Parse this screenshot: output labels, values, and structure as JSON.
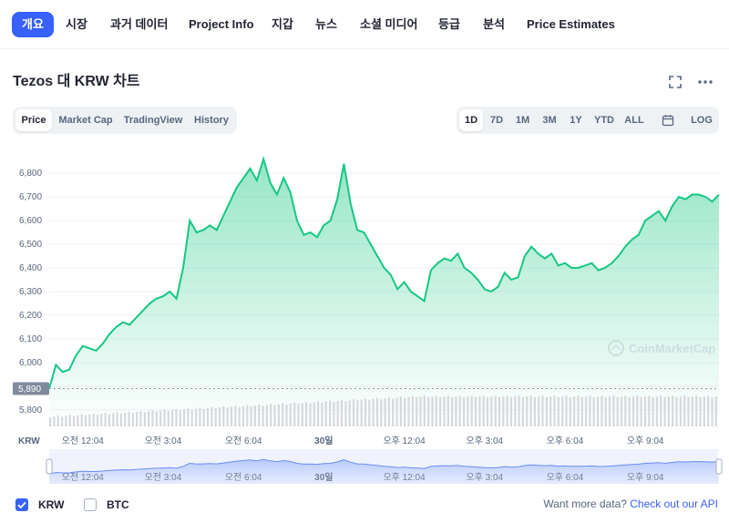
{
  "nav": {
    "items": [
      "개요",
      "시장",
      "과거 데이터",
      "Project Info",
      "지갑",
      "뉴스",
      "소셜 미디어",
      "등급",
      "분석",
      "Price Estimates"
    ],
    "active_index": 0
  },
  "title": "Tezos 대 KRW 차트",
  "icons": {
    "fullscreen": "fullscreen-icon",
    "more": "more-dots-icon",
    "calendar": "calendar-icon"
  },
  "type_tabs": [
    "Price",
    "Market Cap",
    "TradingView",
    "History"
  ],
  "range_tabs": [
    "1D",
    "7D",
    "1M",
    "3M",
    "1Y",
    "YTD",
    "ALL"
  ],
  "log_label": "LOG",
  "watermark": "CoinMarketCap",
  "colors": {
    "accent": "#3861fb",
    "line": "#16c784",
    "text": "#222531",
    "muted": "#58667e"
  },
  "chart_data": {
    "type": "area",
    "y_unit": "KRW",
    "ylim": [
      5780,
      6870
    ],
    "yticks": [
      5800,
      5900,
      6000,
      6100,
      6200,
      6300,
      6400,
      6500,
      6600,
      6700,
      6800
    ],
    "ytick_labels": [
      "5,800",
      "",
      "6,000",
      "6,100",
      "6,200",
      "6,300",
      "6,400",
      "6,500",
      "6,600",
      "6,700",
      "6,800"
    ],
    "current_label": "5,890",
    "current_value": 5890,
    "x_axis_label": "KRW",
    "x_ticks": [
      {
        "pos": 0.05,
        "label": "오전 12:04",
        "bold": false
      },
      {
        "pos": 0.17,
        "label": "오전 3:04",
        "bold": false
      },
      {
        "pos": 0.29,
        "label": "오전 6:04",
        "bold": false
      },
      {
        "pos": 0.41,
        "label": "30일",
        "bold": true
      },
      {
        "pos": 0.53,
        "label": "오후 12:04",
        "bold": false
      },
      {
        "pos": 0.65,
        "label": "오후 3:04",
        "bold": false
      },
      {
        "pos": 0.77,
        "label": "오후 6:04",
        "bold": false
      },
      {
        "pos": 0.89,
        "label": "오후 9:04",
        "bold": false
      }
    ],
    "series": [
      {
        "name": "KRW",
        "x": [
          0,
          0.01,
          0.02,
          0.03,
          0.04,
          0.05,
          0.06,
          0.07,
          0.08,
          0.09,
          0.1,
          0.11,
          0.12,
          0.13,
          0.14,
          0.15,
          0.16,
          0.17,
          0.18,
          0.19,
          0.2,
          0.21,
          0.22,
          0.23,
          0.24,
          0.25,
          0.26,
          0.27,
          0.28,
          0.29,
          0.3,
          0.31,
          0.32,
          0.33,
          0.34,
          0.35,
          0.36,
          0.37,
          0.38,
          0.39,
          0.4,
          0.41,
          0.42,
          0.43,
          0.44,
          0.45,
          0.46,
          0.47,
          0.48,
          0.49,
          0.5,
          0.51,
          0.52,
          0.53,
          0.54,
          0.55,
          0.56,
          0.57,
          0.58,
          0.59,
          0.6,
          0.61,
          0.62,
          0.63,
          0.64,
          0.65,
          0.66,
          0.67,
          0.68,
          0.69,
          0.7,
          0.71,
          0.72,
          0.73,
          0.74,
          0.75,
          0.76,
          0.77,
          0.78,
          0.79,
          0.8,
          0.81,
          0.82,
          0.83,
          0.84,
          0.85,
          0.86,
          0.87,
          0.88,
          0.89,
          0.9,
          0.91,
          0.92,
          0.93,
          0.94,
          0.95,
          0.96,
          0.97,
          0.98,
          0.99,
          1.0
        ],
        "values": [
          5890,
          5990,
          5960,
          5970,
          6030,
          6070,
          6060,
          6050,
          6080,
          6120,
          6150,
          6170,
          6160,
          6190,
          6220,
          6250,
          6270,
          6280,
          6300,
          6270,
          6400,
          6600,
          6550,
          6560,
          6580,
          6560,
          6620,
          6680,
          6740,
          6780,
          6820,
          6770,
          6860,
          6760,
          6710,
          6780,
          6720,
          6600,
          6540,
          6550,
          6530,
          6580,
          6600,
          6690,
          6840,
          6670,
          6560,
          6550,
          6500,
          6450,
          6400,
          6370,
          6310,
          6340,
          6300,
          6280,
          6260,
          6390,
          6420,
          6440,
          6430,
          6460,
          6400,
          6380,
          6350,
          6310,
          6300,
          6320,
          6380,
          6350,
          6360,
          6450,
          6490,
          6460,
          6440,
          6460,
          6410,
          6420,
          6400,
          6400,
          6410,
          6420,
          6390,
          6400,
          6420,
          6450,
          6490,
          6520,
          6540,
          6600,
          6620,
          6640,
          6600,
          6660,
          6700,
          6690,
          6710,
          6710,
          6700,
          6680,
          6710
        ]
      }
    ],
    "legend": [
      {
        "name": "KRW",
        "checked": true
      },
      {
        "name": "BTC",
        "checked": false
      }
    ]
  },
  "footer": {
    "prefix": "Want more data?",
    "link": "Check out our API"
  }
}
